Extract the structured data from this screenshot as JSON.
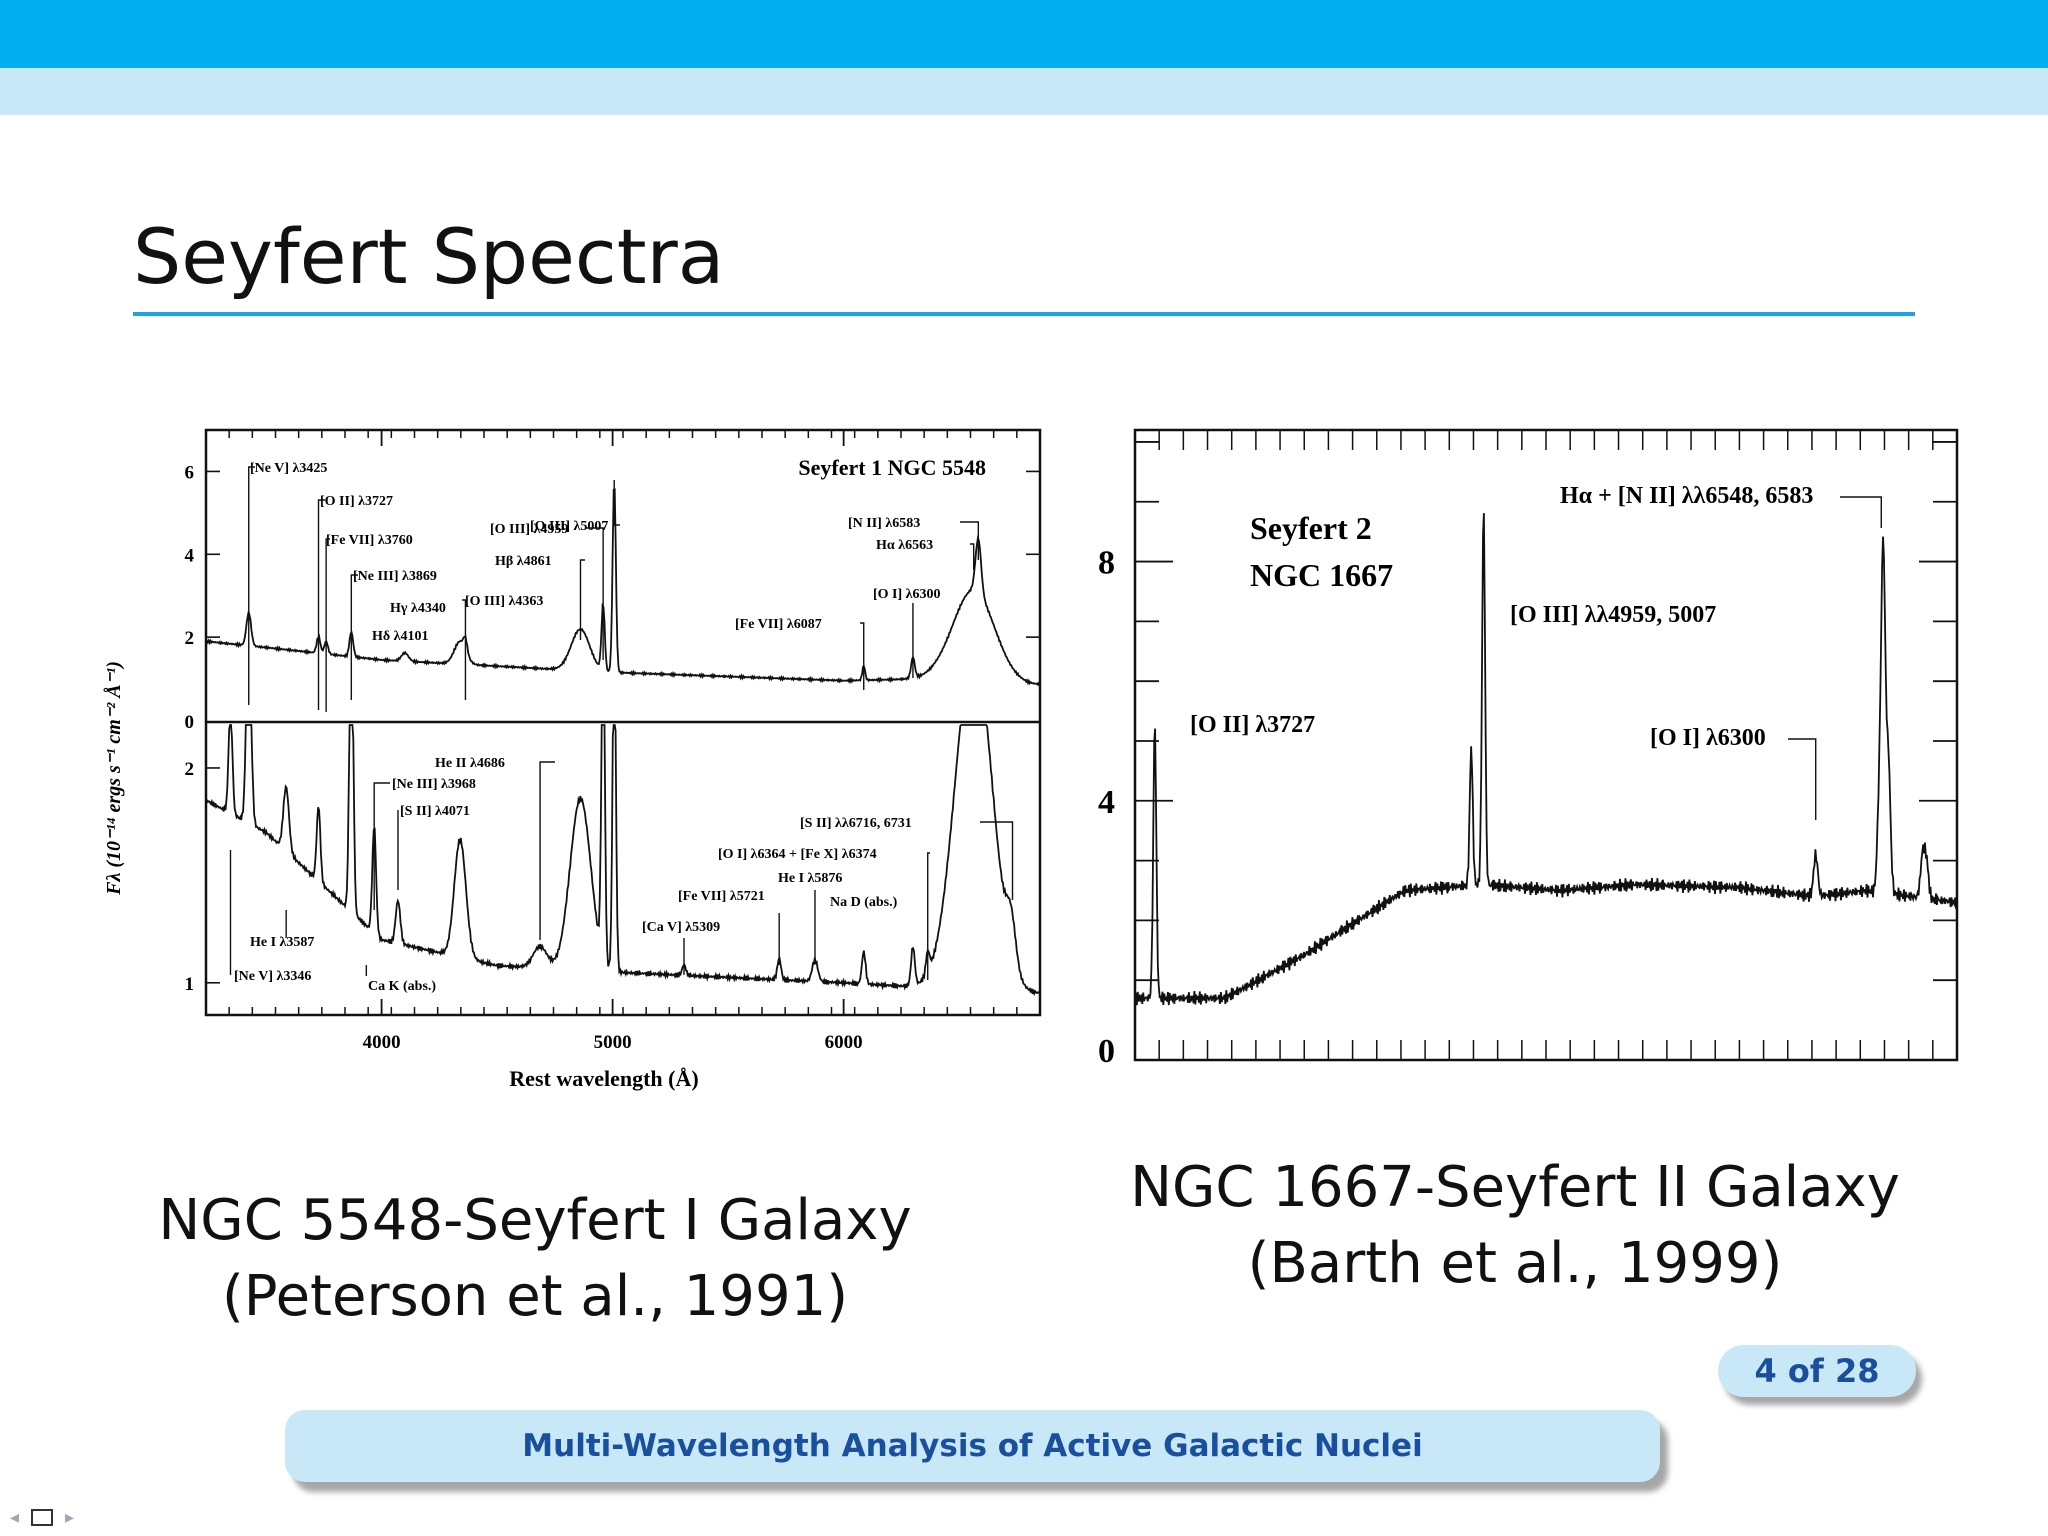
{
  "slide": {
    "title": "Seyfert Spectra",
    "page_label": "4 of 28",
    "footer_text": "Multi-Wavelength Analysis of Active Galactic Nuclei",
    "colors": {
      "header_bar": "#00aeef",
      "light_bar": "#c8e8f8",
      "title_rule": "#1aa6e0",
      "footer_text": "#1a4f9e"
    }
  },
  "captions": {
    "left_line1": "NGC 5548-Seyfert I Galaxy",
    "left_line2": "(Peterson et al., 1991)",
    "right_line1": "NGC 1667-Seyfert II Galaxy",
    "right_line2": "(Barth et al., 1999)"
  },
  "nav": {
    "prev_icon": "triangle-left-icon",
    "frame_icon": "frame-box-icon",
    "next_icon": "triangle-right-icon"
  },
  "chart_data": [
    {
      "type": "line",
      "title": "Seyfert 1 NGC 5548",
      "xlabel": "Rest wavelength (Å)",
      "ylabel": "Fλ (10⁻¹⁴ ergs s⁻¹ cm⁻² Å⁻¹)",
      "xlim": [
        3240,
        6850
      ],
      "x_ticks": [
        "4000",
        "5000",
        "6000"
      ],
      "panels": [
        {
          "name": "upper",
          "ylim": [
            0,
            7
          ],
          "y_ticks": [
            "0",
            "2",
            "4",
            "6"
          ],
          "continuum": [
            [
              3240,
              1.9
            ],
            [
              3500,
              1.75
            ],
            [
              4000,
              1.45
            ],
            [
              5000,
              1.15
            ],
            [
              6000,
              0.95
            ],
            [
              6400,
              1.0
            ],
            [
              6800,
              0.85
            ]
          ],
          "lines": [
            {
              "x": 3425,
              "h": 0.8,
              "w": 10
            },
            {
              "x": 3727,
              "h": 0.4,
              "w": 8
            },
            {
              "x": 3760,
              "h": 0.3,
              "w": 8
            },
            {
              "x": 3869,
              "h": 0.6,
              "w": 8
            },
            {
              "x": 4101,
              "h": 0.2,
              "w": 15
            },
            {
              "x": 4340,
              "h": 0.55,
              "w": 25
            },
            {
              "x": 4363,
              "h": 0.3,
              "w": 8
            },
            {
              "x": 4861,
              "h": 1.0,
              "w": 40
            },
            {
              "x": 4959,
              "h": 1.6,
              "w": 7
            },
            {
              "x": 5007,
              "h": 4.6,
              "w": 7
            },
            {
              "x": 6087,
              "h": 0.35,
              "w": 6
            },
            {
              "x": 6300,
              "h": 0.5,
              "w": 8
            },
            {
              "x": 6563,
              "h": 2.2,
              "w": 90
            },
            {
              "x": 6583,
              "h": 1.3,
              "w": 12
            }
          ],
          "labels": [
            {
              "text": "[Ne V] λ3425",
              "x": 3425
            },
            {
              "text": "[O II] λ3727",
              "x": 3727
            },
            {
              "text": "[Fe VII] λ3760",
              "x": 3760
            },
            {
              "text": "[Ne III] λ3869",
              "x": 3869
            },
            {
              "text": "Hγ λ4340",
              "x": 4340
            },
            {
              "text": "Hδ λ4101",
              "x": 4101
            },
            {
              "text": "[O III] λ4363",
              "x": 4363
            },
            {
              "text": "[O III] λ4959",
              "x": 4959
            },
            {
              "text": "Hβ λ4861",
              "x": 4861
            },
            {
              "text": "[O III] λ5007",
              "x": 5007
            },
            {
              "text": "[Fe VII] λ6087",
              "x": 6087
            },
            {
              "text": "[O I] λ6300",
              "x": 6300
            },
            {
              "text": "[N II] λ6583",
              "x": 6583
            },
            {
              "text": "Hα λ6563",
              "x": 6563
            }
          ]
        },
        {
          "name": "lower",
          "ylim": [
            0.85,
            2.2
          ],
          "y_ticks": [
            "1",
            "2"
          ],
          "continuum": [
            [
              3240,
              1.85
            ],
            [
              3500,
              1.7
            ],
            [
              4000,
              1.2
            ],
            [
              4500,
              1.08
            ],
            [
              5000,
              1.05
            ],
            [
              6000,
              1.0
            ],
            [
              6800,
              0.95
            ]
          ],
          "lines": [
            {
              "x": 3346,
              "h": 0.5,
              "w": 8
            },
            {
              "x": 3425,
              "h": 1.0,
              "w": 10
            },
            {
              "x": 3587,
              "h": 0.3,
              "w": 12
            },
            {
              "x": 3727,
              "h": 0.35,
              "w": 8
            },
            {
              "x": 3869,
              "h": 1.5,
              "w": 8
            },
            {
              "x": 3968,
              "h": 0.5,
              "w": 8
            },
            {
              "x": 4071,
              "h": 0.2,
              "w": 10
            },
            {
              "x": 4340,
              "h": 0.55,
              "w": 25
            },
            {
              "x": 4686,
              "h": 0.1,
              "w": 30
            },
            {
              "x": 4861,
              "h": 0.8,
              "w": 45
            },
            {
              "x": 4959,
              "h": 1.6,
              "w": 7
            },
            {
              "x": 5007,
              "h": 1.6,
              "w": 7
            },
            {
              "x": 5309,
              "h": 0.05,
              "w": 8
            },
            {
              "x": 5721,
              "h": 0.1,
              "w": 8
            },
            {
              "x": 5876,
              "h": 0.1,
              "w": 12
            },
            {
              "x": 6087,
              "h": 0.15,
              "w": 8
            },
            {
              "x": 6300,
              "h": 0.18,
              "w": 8
            },
            {
              "x": 6364,
              "h": 0.1,
              "w": 8
            },
            {
              "x": 6563,
              "h": 1.6,
              "w": 80
            },
            {
              "x": 6725,
              "h": 0.2,
              "w": 20
            }
          ],
          "labels": [
            {
              "text": "He II λ4686",
              "x": 4686
            },
            {
              "text": "[Ne III] λ3968",
              "x": 3968
            },
            {
              "text": "[S II] λ4071",
              "x": 4071
            },
            {
              "text": "[S II] λλ6716, 6731",
              "x": 6731
            },
            {
              "text": "[O I] λ6364 + [Fe X] λ6374",
              "x": 6364
            },
            {
              "text": "He I λ5876",
              "x": 5876
            },
            {
              "text": "Na D (abs.)",
              "x": 5890
            },
            {
              "text": "[Fe VII] λ5721",
              "x": 5721
            },
            {
              "text": "[Ca V] λ5309",
              "x": 5309
            },
            {
              "text": "He I λ3587",
              "x": 3587
            },
            {
              "text": "[Ne V] λ3346",
              "x": 3346
            },
            {
              "text": "Ca K (abs.)",
              "x": 3934
            }
          ]
        }
      ]
    },
    {
      "type": "line",
      "title": "Seyfert 2 NGC 1667",
      "xlim": [
        3650,
        6850
      ],
      "ylim": [
        0,
        10.2
      ],
      "y_ticks": [
        "0",
        "4",
        "8"
      ],
      "continuum": [
        [
          3650,
          0.7
        ],
        [
          4000,
          0.7
        ],
        [
          4300,
          1.4
        ],
        [
          4700,
          2.5
        ],
        [
          5000,
          2.6
        ],
        [
          5300,
          2.5
        ],
        [
          5600,
          2.6
        ],
        [
          6000,
          2.55
        ],
        [
          6300,
          2.4
        ],
        [
          6500,
          2.5
        ],
        [
          6850,
          2.3
        ]
      ],
      "lines": [
        {
          "x": 3727,
          "h": 4.6,
          "w": 6
        },
        {
          "x": 4959,
          "h": 2.3,
          "w": 6
        },
        {
          "x": 5007,
          "h": 6.3,
          "w": 6
        },
        {
          "x": 6300,
          "h": 0.7,
          "w": 8
        },
        {
          "x": 6548,
          "h": 1.5,
          "w": 8
        },
        {
          "x": 6563,
          "h": 5.6,
          "w": 8
        },
        {
          "x": 6583,
          "h": 2.2,
          "w": 8
        },
        {
          "x": 6716,
          "h": 0.7,
          "w": 8
        },
        {
          "x": 6731,
          "h": 0.6,
          "w": 8
        }
      ],
      "labels": [
        {
          "text": "Hα + [N II] λλ6548, 6583",
          "x": 6563
        },
        {
          "text": "[O III] λλ4959, 5007",
          "x": 5007
        },
        {
          "text": "[O II] λ3727",
          "x": 3727
        },
        {
          "text": "[O I] λ6300",
          "x": 6300
        }
      ]
    }
  ]
}
